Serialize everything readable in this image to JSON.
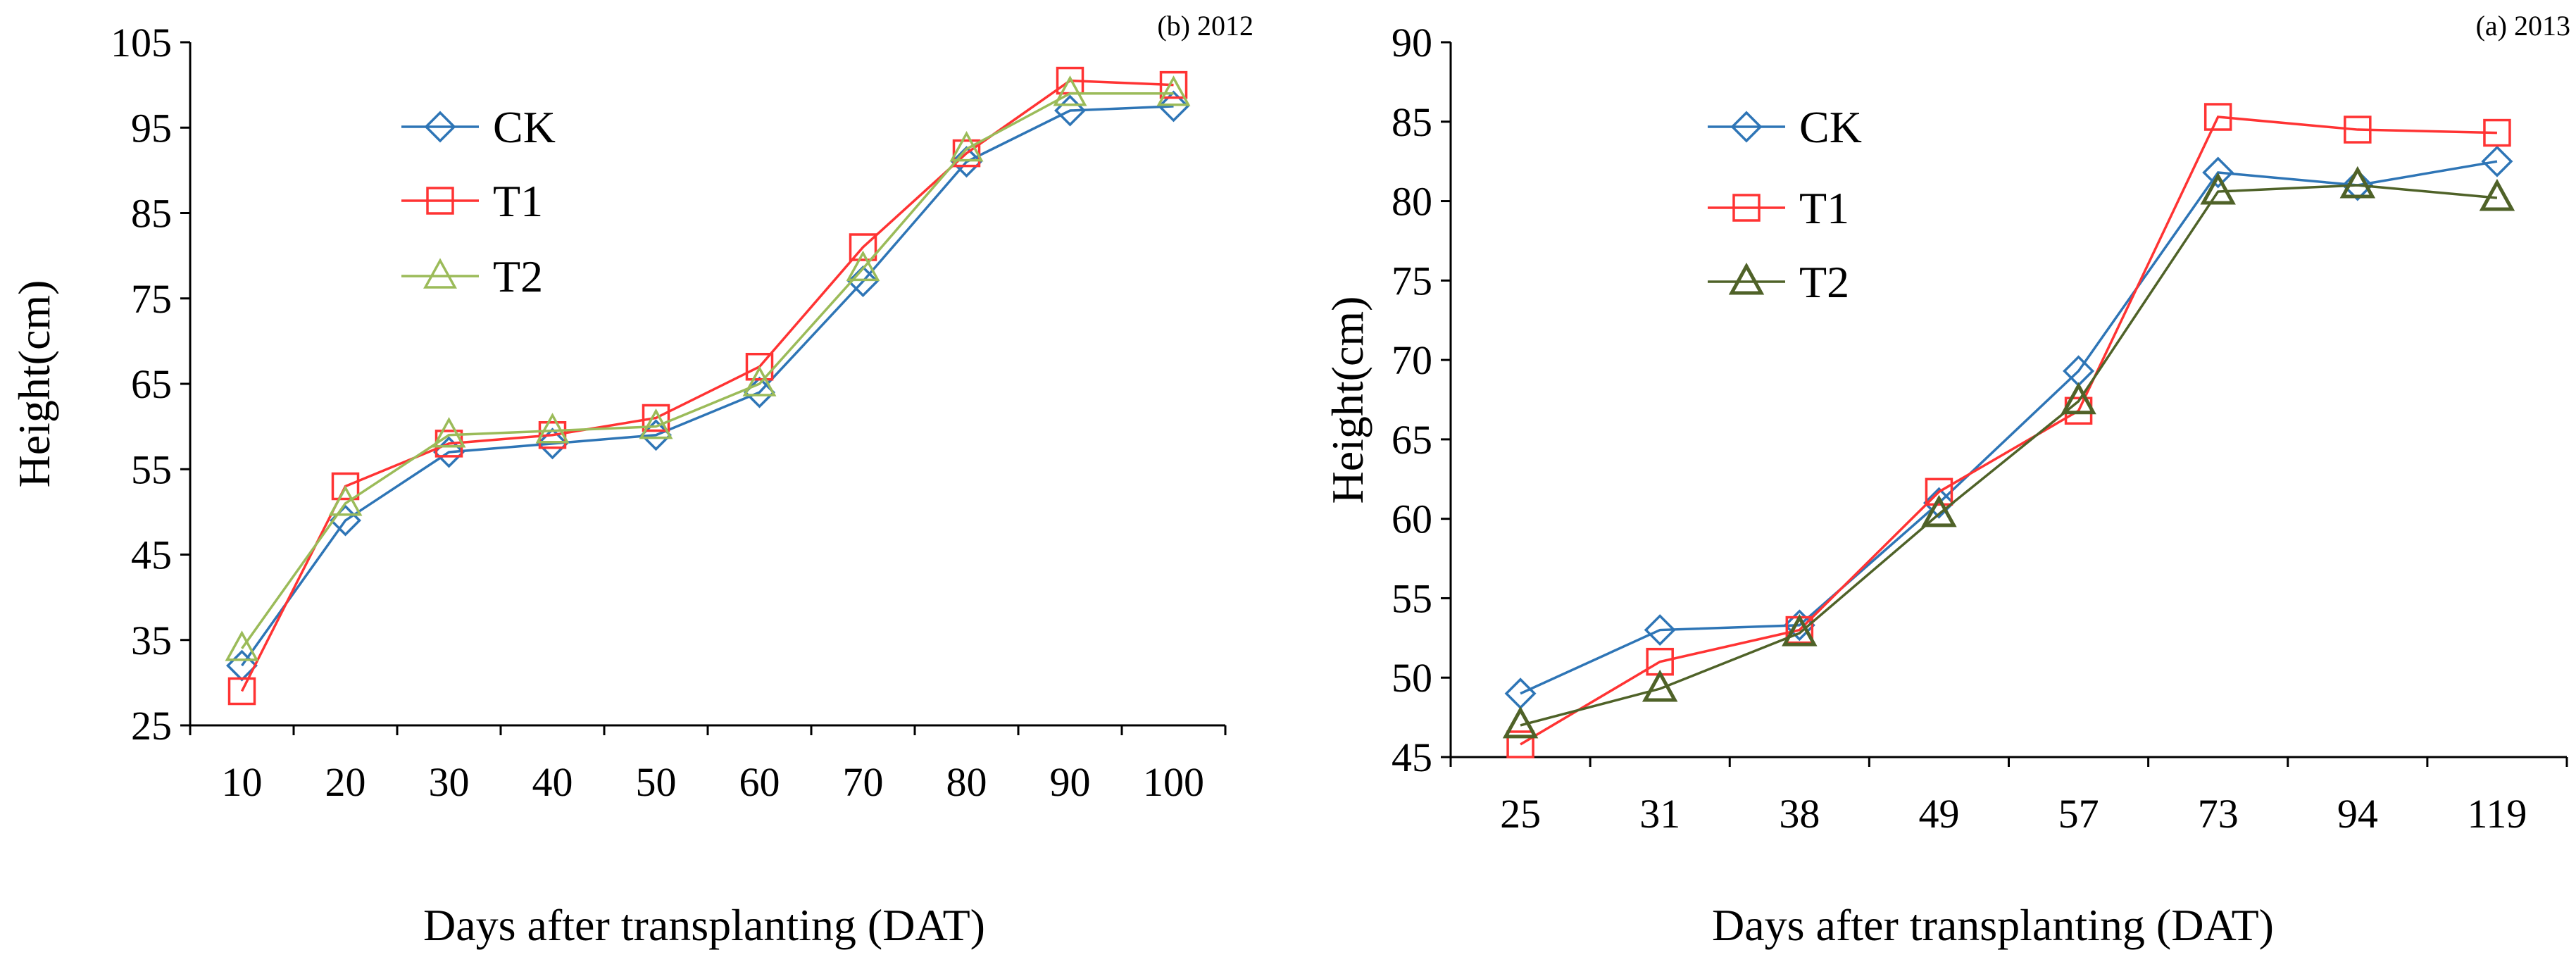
{
  "chart_data": [
    {
      "type": "line",
      "title": "(b) 2012",
      "xlabel": "Days after transplanting (DAT)",
      "ylabel": "Height(cm)",
      "categories": [
        "10",
        "20",
        "30",
        "40",
        "50",
        "60",
        "70",
        "80",
        "90",
        "100"
      ],
      "ylim": [
        25,
        105
      ],
      "yticks": [
        "25",
        "35",
        "45",
        "55",
        "65",
        "75",
        "85",
        "95",
        "105"
      ],
      "grid": false,
      "legend_position": "top-left",
      "series": [
        {
          "name": "CK",
          "values": [
            32,
            49,
            57,
            58,
            59,
            64,
            77,
            91,
            97,
            97.5
          ],
          "color": "#2E75B6",
          "marker": "diamond"
        },
        {
          "name": "T1",
          "values": [
            29,
            53,
            58,
            59,
            61,
            67,
            81,
            92,
            100.5,
            100
          ],
          "color": "#FF3333",
          "marker": "square"
        },
        {
          "name": "T2",
          "values": [
            34,
            51,
            59,
            59.5,
            60,
            65,
            78.5,
            92.5,
            99,
            99
          ],
          "color": "#9BBB59",
          "marker": "triangle"
        }
      ]
    },
    {
      "type": "line",
      "title": "(a) 2013",
      "xlabel": "Days after transplanting (DAT)",
      "ylabel": "Height(cm)",
      "categories": [
        "25",
        "31",
        "38",
        "49",
        "57",
        "73",
        "94",
        "119"
      ],
      "ylim": [
        45,
        90
      ],
      "yticks": [
        "45",
        "50",
        "55",
        "60",
        "65",
        "70",
        "75",
        "80",
        "85",
        "90"
      ],
      "grid": false,
      "legend_position": "top-left",
      "series": [
        {
          "name": "CK",
          "values": [
            49,
            53,
            53.3,
            61,
            69.3,
            81.8,
            81,
            82.5
          ],
          "color": "#2E75B6",
          "marker": "diamond"
        },
        {
          "name": "T1",
          "values": [
            45.8,
            51,
            53,
            61.7,
            66.8,
            85.3,
            84.5,
            84.3
          ],
          "color": "#FF3333",
          "marker": "square"
        },
        {
          "name": "T2",
          "values": [
            47,
            49.3,
            52.8,
            60.3,
            67.4,
            80.6,
            81,
            80.2
          ],
          "color": "#4F6228",
          "marker": "triangle"
        }
      ]
    }
  ]
}
